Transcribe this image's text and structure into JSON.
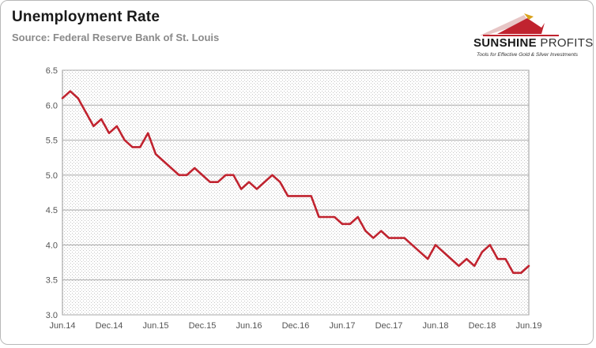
{
  "header": {
    "title": "Unemployment Rate",
    "subtitle": "Source: Federal Reserve Bank of St. Louis"
  },
  "logo": {
    "name_bold": "SUNSHINE",
    "name_light": "PROFITS",
    "tagline": "Tools for Effective Gold & Silver Investments",
    "accent_color": "#c0232f",
    "gold_color": "#d9a21b"
  },
  "chart_data": {
    "type": "line",
    "title": "Unemployment Rate",
    "subtitle": "Source: Federal Reserve Bank of St. Louis",
    "xlabel": "",
    "ylabel": "",
    "ylim": [
      3.0,
      6.5
    ],
    "yticks": [
      "3.0",
      "3.5",
      "4.0",
      "4.5",
      "5.0",
      "5.5",
      "6.0",
      "6.5"
    ],
    "xticks": [
      "Jun.14",
      "Dec.14",
      "Jun.15",
      "Dec.15",
      "Jun.16",
      "Dec.16",
      "Jun.17",
      "Dec.17",
      "Jun.18",
      "Dec.18",
      "Jun.19"
    ],
    "grid": true,
    "grid_style": "dotted background",
    "legend": "none",
    "line_color": "#c0232f",
    "series": [
      {
        "x": [
          "2014-06",
          "2014-07",
          "2014-08",
          "2014-09",
          "2014-10",
          "2014-11",
          "2014-12",
          "2015-01",
          "2015-02",
          "2015-03",
          "2015-04",
          "2015-05",
          "2015-06",
          "2015-07",
          "2015-08",
          "2015-09",
          "2015-10",
          "2015-11",
          "2015-12",
          "2016-01",
          "2016-02",
          "2016-03",
          "2016-04",
          "2016-05",
          "2016-06",
          "2016-07",
          "2016-08",
          "2016-09",
          "2016-10",
          "2016-11",
          "2016-12",
          "2017-01",
          "2017-02",
          "2017-03",
          "2017-04",
          "2017-05",
          "2017-06",
          "2017-07",
          "2017-08",
          "2017-09",
          "2017-10",
          "2017-11",
          "2017-12",
          "2018-01",
          "2018-02",
          "2018-03",
          "2018-04",
          "2018-05",
          "2018-06",
          "2018-07",
          "2018-08",
          "2018-09",
          "2018-10",
          "2018-11",
          "2018-12",
          "2019-01",
          "2019-02",
          "2019-03",
          "2019-04",
          "2019-05",
          "2019-06"
        ],
        "values": [
          6.1,
          6.2,
          6.1,
          5.9,
          5.7,
          5.8,
          5.6,
          5.7,
          5.5,
          5.4,
          5.4,
          5.6,
          5.3,
          5.2,
          5.1,
          5.0,
          5.0,
          5.1,
          5.0,
          4.9,
          4.9,
          5.0,
          5.0,
          4.8,
          4.9,
          4.8,
          4.9,
          5.0,
          4.9,
          4.7,
          4.7,
          4.7,
          4.7,
          4.4,
          4.4,
          4.4,
          4.3,
          4.3,
          4.4,
          4.2,
          4.1,
          4.2,
          4.1,
          4.1,
          4.1,
          4.0,
          3.9,
          3.8,
          4.0,
          3.9,
          3.8,
          3.7,
          3.8,
          3.7,
          3.9,
          4.0,
          3.8,
          3.8,
          3.6,
          3.6,
          3.7
        ]
      }
    ]
  }
}
